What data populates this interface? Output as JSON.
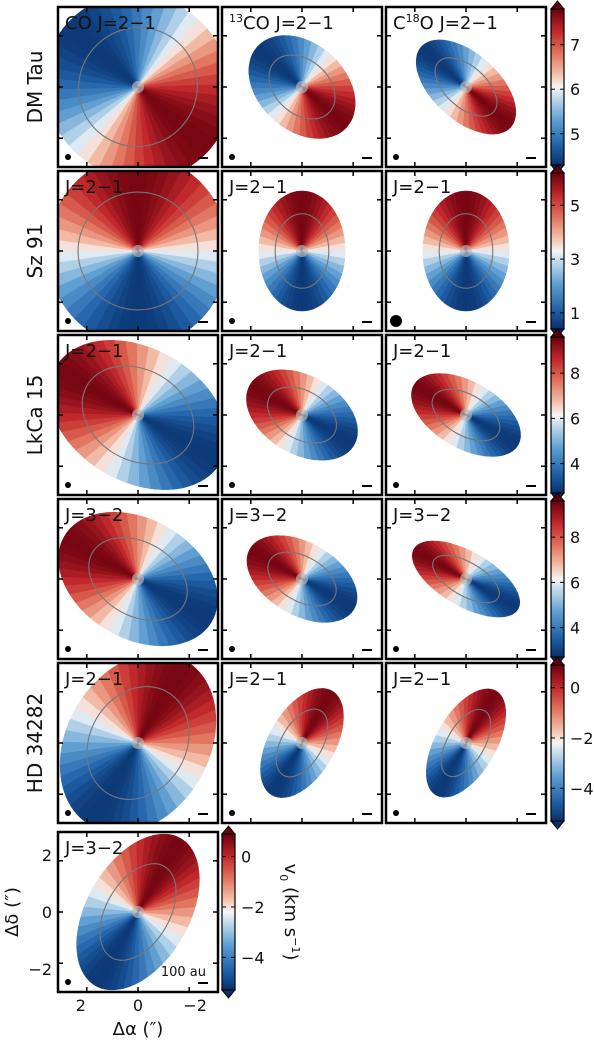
{
  "chart_data": {
    "type": "heatmap",
    "description_free": true,
    "column_labels": [
      "CO",
      "13CO",
      "C18O"
    ],
    "header_molecules": [
      {
        "pre": "CO J=2−1"
      },
      {
        "sup": "13",
        "post": "CO J=2−1"
      },
      {
        "pre": "C",
        "sup": "18",
        "post": "O J=2−1"
      }
    ],
    "rows": [
      {
        "source": "DM Tau",
        "transitions": [
          "CO J=2−1",
          "13CO J=2−1",
          "C18O J=2−1"
        ],
        "panel_labels": [
          "",
          "",
          ""
        ],
        "colorbar": {
          "min": 4.3,
          "max": 7.8,
          "ticks": [
            5,
            6,
            7
          ]
        },
        "pa": -42,
        "mask_ecc": [
          0.95,
          0.72,
          0.55
        ]
      },
      {
        "source": "Sz 91",
        "transitions": [
          "J=2−1",
          "J=2−1",
          "J=2−1"
        ],
        "panel_labels": [
          "J=2−1",
          "J=2−1",
          "J=2−1"
        ],
        "colorbar": {
          "min": 0.4,
          "max": 6.2,
          "ticks": [
            1,
            3,
            5
          ]
        },
        "pa": 90,
        "mask_ecc": [
          0.95,
          0.72,
          0.72
        ]
      },
      {
        "source": "LkCa 15",
        "transitions": [
          "J=2−1",
          "J=2−1",
          "J=2−1"
        ],
        "panel_labels": [
          "J=2−1",
          "J=2−1",
          "J=2−1"
        ],
        "colorbar": {
          "min": 2.7,
          "max": 9.6,
          "ticks": [
            4,
            6,
            8
          ]
        },
        "pa": 150,
        "mask_ecc": [
          0.7,
          0.65,
          0.55
        ]
      },
      {
        "source": "",
        "transitions": [
          "J=3−2",
          "J=3−2",
          "J=3−2"
        ],
        "panel_labels": [
          "J=3−2",
          "J=3−2",
          "J=3−2"
        ],
        "colorbar": {
          "min": 2.7,
          "max": 9.6,
          "ticks": [
            4,
            6,
            8
          ]
        },
        "pa": 150,
        "mask_ecc": [
          0.7,
          0.6,
          0.45
        ]
      },
      {
        "source": "HD 34282",
        "transitions": [
          "J=2−1",
          "J=2−1",
          "J=2−1"
        ],
        "panel_labels": [
          "J=2−1",
          "J=2−1",
          "J=2−1"
        ],
        "colorbar": {
          "min": -5.3,
          "max": 0.9,
          "ticks": [
            0,
            -2,
            -4
          ]
        },
        "pa": 60,
        "mask_ecc": [
          0.75,
          0.55,
          0.5
        ]
      },
      {
        "source": "",
        "transitions": [
          "J=3−2"
        ],
        "panel_labels": [
          "J=3−2"
        ],
        "colorbar": {
          "min": -5.3,
          "max": 0.9,
          "ticks": [
            0,
            -2,
            -4
          ]
        },
        "pa": 60,
        "mask_ecc": [
          0.6
        ]
      }
    ],
    "colormap": "RdBu_r",
    "colors": {
      "low": "#08306b",
      "mid": "#f7f7f7",
      "high": "#67000d"
    },
    "colorbar_label": "v",
    "colorbar_label_sub": "0",
    "colorbar_label_units": " (km s",
    "colorbar_label_exp": "−1",
    "colorbar_label_close": ")",
    "xlabel": "Δα (″)",
    "ylabel": "Δδ (″)",
    "xlabel_parts": {
      "sym": "Δα",
      "unit": "(″)"
    },
    "ylabel_parts": {
      "sym": "Δδ",
      "unit": "(″)"
    },
    "xticks": [
      2,
      0,
      -2
    ],
    "yticks": [
      2,
      0,
      -2
    ],
    "xlim": [
      2.8,
      -2.8
    ],
    "ylim": [
      -2.8,
      2.8
    ],
    "scale_bar_label": "100 au"
  }
}
